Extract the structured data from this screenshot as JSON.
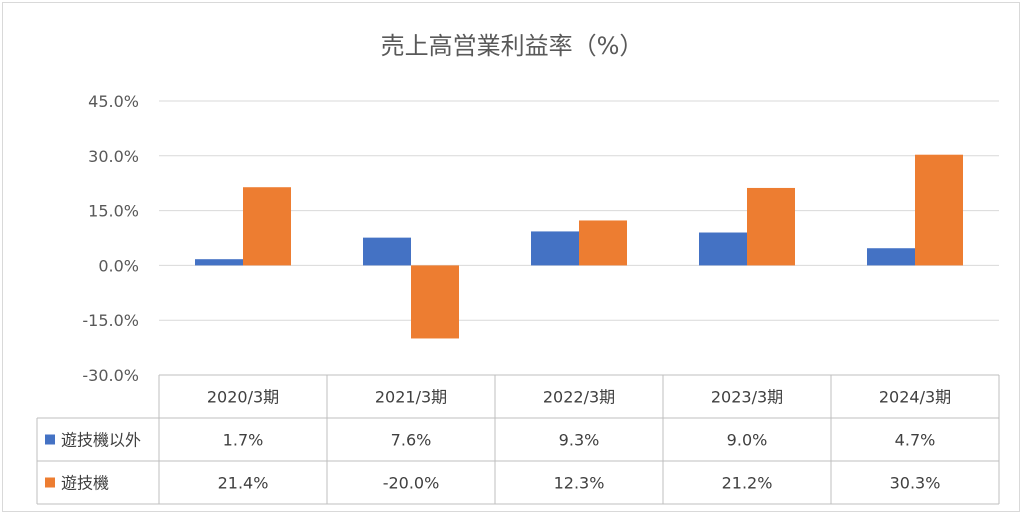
{
  "chart_data": {
    "type": "bar",
    "title": "売上高営業利益率（%）",
    "categories": [
      "2020/3期",
      "2021/3期",
      "2022/3期",
      "2023/3期",
      "2024/3期"
    ],
    "series": [
      {
        "name": "遊技機以外",
        "values": [
          1.7,
          7.6,
          9.3,
          9.0,
          4.7
        ],
        "labels": [
          "1.7%",
          "7.6%",
          "9.3%",
          "9.0%",
          "4.7%"
        ],
        "color": "#4472C4"
      },
      {
        "name": "遊技機",
        "values": [
          21.4,
          -20.0,
          12.3,
          21.2,
          30.3
        ],
        "labels": [
          "21.4%",
          "-20.0%",
          "12.3%",
          "21.2%",
          "30.3%"
        ],
        "color": "#ED7D31"
      }
    ],
    "ylim": [
      -30,
      45
    ],
    "yticks": [
      45,
      30,
      15,
      0,
      -15,
      -30
    ],
    "ytick_labels": [
      "45.0%",
      "30.0%",
      "15.0%",
      "0.0%",
      "-15.0%",
      "-30.0%"
    ],
    "grid": true,
    "legend": "data-table",
    "xlabel": "",
    "ylabel": ""
  }
}
